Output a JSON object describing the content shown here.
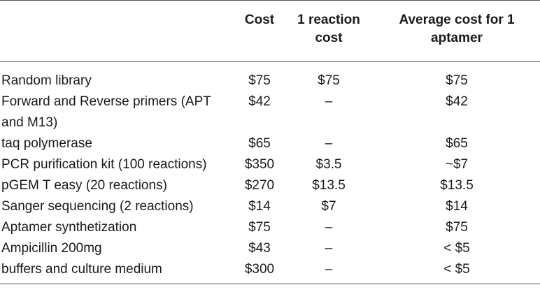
{
  "table": {
    "headers": [
      "",
      "Cost",
      "1 reaction cost",
      "Average cost for 1 aptamer"
    ],
    "rows": [
      [
        "Random library",
        "$75",
        "$75",
        "$75"
      ],
      [
        "Forward and Reverse primers (APT and M13)",
        "$42",
        "–",
        "$42"
      ],
      [
        "taq polymerase",
        "$65",
        "–",
        "$65"
      ],
      [
        "PCR purification kit (100 reactions)",
        "$350",
        "$3.5",
        "~$7"
      ],
      [
        "pGEM T easy (20 reactions)",
        "$270",
        "$13.5",
        "$13.5"
      ],
      [
        "Sanger sequencing (2 reactions)",
        "$14",
        "$7",
        "$14"
      ],
      [
        "Aptamer synthetization",
        "$75",
        "–",
        "$75"
      ],
      [
        "Ampicillin 200mg",
        "$43",
        "–",
        "< $5"
      ],
      [
        "buffers and culture medium",
        "$300",
        "–",
        "< $5"
      ]
    ]
  }
}
